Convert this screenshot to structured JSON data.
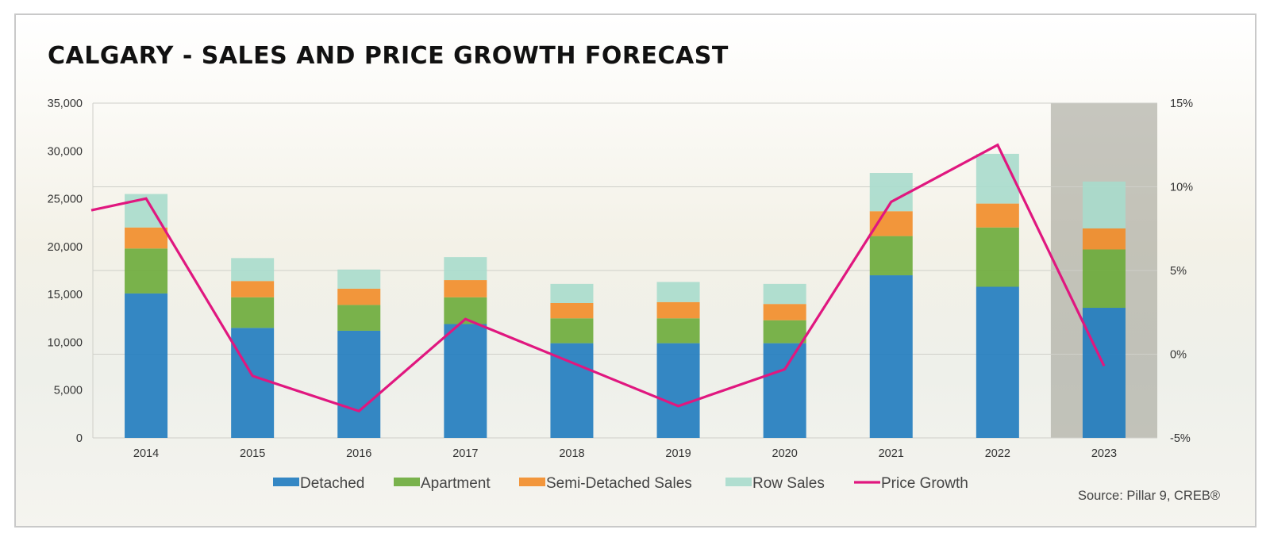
{
  "title": "CALGARY - SALES AND PRICE GROWTH FORECAST",
  "source": "Source: Pillar 9, CREB®",
  "chart_data": {
    "type": "bar",
    "stacked": true,
    "categories": [
      "2014",
      "2015",
      "2016",
      "2017",
      "2018",
      "2019",
      "2020",
      "2021",
      "2022",
      "2023"
    ],
    "series": [
      {
        "name": "Detached",
        "type": "bar",
        "axis": "left",
        "color": "#1f7bbf",
        "values": [
          15100,
          11500,
          11200,
          11900,
          9900,
          9900,
          9900,
          17000,
          15800,
          13600
        ]
      },
      {
        "name": "Apartment",
        "type": "bar",
        "axis": "left",
        "color": "#6bab3a",
        "values": [
          4700,
          3200,
          2700,
          2800,
          2600,
          2600,
          2400,
          4100,
          6200,
          6100
        ]
      },
      {
        "name": "Semi-Detached Sales",
        "type": "bar",
        "axis": "left",
        "color": "#f28c28",
        "values": [
          2200,
          1700,
          1700,
          1800,
          1600,
          1700,
          1700,
          2600,
          2500,
          2200
        ]
      },
      {
        "name": "Row Sales",
        "type": "bar",
        "axis": "left",
        "color": "#a8dccc",
        "values": [
          3500,
          2400,
          2000,
          2400,
          2000,
          2100,
          2100,
          4000,
          5200,
          4900
        ]
      },
      {
        "name": "Price Growth",
        "type": "line",
        "axis": "right",
        "color": "#e0177f",
        "values": [
          9.3,
          -1.3,
          -3.4,
          2.1,
          -0.5,
          -3.1,
          -0.9,
          9.1,
          12.5,
          -0.7
        ],
        "line_start_value": 8.6
      }
    ],
    "y_left": {
      "min": 0,
      "max": 35000,
      "ticks": [
        "0",
        "5,000",
        "10,000",
        "15,000",
        "20,000",
        "25,000",
        "30,000",
        "35,000"
      ]
    },
    "y_right": {
      "min": -5,
      "max": 15,
      "ticks": [
        "-5%",
        "0%",
        "5%",
        "10%",
        "15%"
      ]
    },
    "highlight_category": "2023",
    "highlight_color": "#9a9a90",
    "grid": true,
    "legend_position": "bottom"
  }
}
